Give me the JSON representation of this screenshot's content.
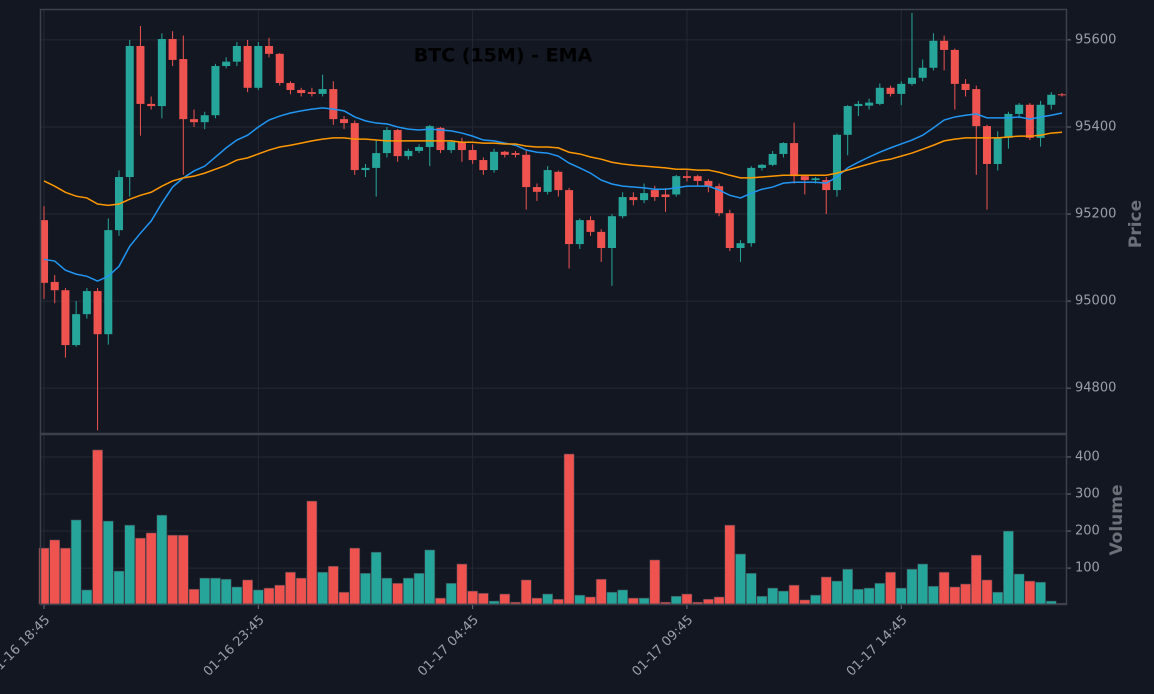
{
  "chart_data": {
    "type": "candlestick",
    "title": "BTC (15M) - EMA",
    "ylabel": "Price",
    "categories": [
      "01-16 18:45",
      null,
      null,
      null,
      null,
      null,
      null,
      null,
      null,
      null,
      null,
      null,
      null,
      null,
      null,
      null,
      null,
      null,
      null,
      null,
      "01-16 23:45",
      null,
      null,
      null,
      null,
      null,
      null,
      null,
      null,
      null,
      null,
      null,
      null,
      null,
      null,
      null,
      null,
      null,
      null,
      null,
      "01-17 04:45",
      null,
      null,
      null,
      null,
      null,
      null,
      null,
      null,
      null,
      null,
      null,
      null,
      null,
      null,
      null,
      null,
      null,
      null,
      null,
      "01-17 09:45",
      null,
      null,
      null,
      null,
      null,
      null,
      null,
      null,
      null,
      null,
      null,
      null,
      null,
      null,
      null,
      null,
      null,
      null,
      null,
      "01-17 14:45",
      null,
      null,
      null,
      null,
      null,
      null,
      null,
      null,
      null,
      null,
      null,
      null,
      null,
      null,
      null
    ],
    "open": [
      95186,
      95044,
      95025,
      94899,
      94970,
      95023,
      94924,
      95163,
      95285,
      95586,
      95453,
      95448,
      95602,
      95556,
      95418,
      95411,
      95427,
      95540,
      95550,
      95586,
      95490,
      95586,
      95568,
      95501,
      95485,
      95480,
      95476,
      95487,
      95418,
      95409,
      95301,
      95306,
      95340,
      95393,
      95333,
      95345,
      95354,
      95398,
      95347,
      95366,
      95347,
      95324,
      95301,
      95343,
      95340,
      95336,
      95262,
      95251,
      95297,
      95255,
      95131,
      95186,
      95159,
      95122,
      95195,
      95239,
      95232,
      95255,
      95245,
      95245,
      95287,
      95287,
      95276,
      95264,
      95202,
      95122,
      95133,
      95306,
      95313,
      95338,
      95363,
      95287,
      95278,
      95278,
      95255,
      95382,
      95448,
      95449,
      95453,
      95490,
      95476,
      95499,
      95513,
      95536,
      95598,
      95577,
      95499,
      95487,
      95402,
      95315,
      95375,
      95430,
      95451,
      95375,
      95451,
      95475
    ],
    "high": [
      95218,
      95060,
      95030,
      95000,
      95030,
      95030,
      95190,
      95300,
      95600,
      95632,
      95470,
      95615,
      95620,
      95610,
      95440,
      95435,
      95545,
      95560,
      95595,
      95600,
      95595,
      95605,
      95570,
      95505,
      95490,
      95490,
      95520,
      95505,
      95425,
      95415,
      95315,
      95370,
      95400,
      95395,
      95350,
      95360,
      95405,
      95400,
      95370,
      95375,
      95360,
      95330,
      95350,
      95345,
      95345,
      95345,
      95270,
      95310,
      95300,
      95260,
      95190,
      95195,
      95165,
      95200,
      95250,
      95250,
      95270,
      95265,
      95260,
      95290,
      95300,
      95290,
      95280,
      95270,
      95210,
      95140,
      95310,
      95315,
      95345,
      95365,
      95410,
      95290,
      95285,
      95285,
      95385,
      95450,
      95460,
      95465,
      95500,
      95495,
      95505,
      95662,
      95555,
      95615,
      95610,
      95580,
      95510,
      95495,
      95405,
      95390,
      95435,
      95455,
      95455,
      95460,
      95480,
      95478
    ],
    "low": [
      95005,
      94995,
      94870,
      94895,
      94960,
      94703,
      94900,
      95150,
      95240,
      95380,
      95440,
      95420,
      95540,
      95290,
      95400,
      95395,
      95420,
      95535,
      95540,
      95480,
      95485,
      95560,
      95495,
      95475,
      95470,
      95470,
      95470,
      95405,
      95395,
      95290,
      95285,
      95240,
      95330,
      95320,
      95325,
      95340,
      95310,
      95340,
      95340,
      95320,
      95315,
      95290,
      95295,
      95330,
      95330,
      95210,
      95230,
      95245,
      95240,
      95075,
      95120,
      95150,
      95090,
      95035,
      95190,
      95220,
      95225,
      95230,
      95205,
      95240,
      95275,
      95265,
      95250,
      95195,
      95115,
      95090,
      95125,
      95300,
      95310,
      95330,
      95270,
      95245,
      95270,
      95200,
      95240,
      95335,
      95425,
      95440,
      95450,
      95470,
      95450,
      95495,
      95505,
      95530,
      95530,
      95440,
      95470,
      95290,
      95210,
      95300,
      95350,
      95420,
      95370,
      95355,
      95440,
      95470
    ],
    "close": [
      95042,
      95025,
      94899,
      94970,
      95023,
      94924,
      95163,
      95285,
      95586,
      95453,
      95448,
      95602,
      95554,
      95418,
      95411,
      95427,
      95540,
      95550,
      95586,
      95490,
      95586,
      95568,
      95501,
      95485,
      95478,
      95476,
      95487,
      95418,
      95409,
      95301,
      95306,
      95340,
      95393,
      95333,
      95345,
      95354,
      95402,
      95347,
      95366,
      95347,
      95324,
      95301,
      95343,
      95336,
      95336,
      95262,
      95251,
      95301,
      95255,
      95131,
      95186,
      95159,
      95122,
      95195,
      95239,
      95232,
      95248,
      95239,
      95239,
      95287,
      95283,
      95276,
      95264,
      95202,
      95122,
      95133,
      95306,
      95313,
      95338,
      95363,
      95287,
      95278,
      95282,
      95255,
      95382,
      95448,
      95453,
      95456,
      95490,
      95476,
      95499,
      95513,
      95536,
      95598,
      95577,
      95499,
      95485,
      95402,
      95315,
      95375,
      95430,
      95451,
      95375,
      95451,
      95474,
      95473
    ],
    "up_color": "#26a69a",
    "down_color": "#ef5350",
    "series": [
      {
        "color": "#2196f3",
        "values": [
          95096,
          95092,
          95071,
          95062,
          95057,
          95046,
          95057,
          95080,
          95126,
          95156,
          95184,
          95225,
          95262,
          95283,
          95299,
          95310,
          95331,
          95352,
          95370,
          95381,
          95400,
          95416,
          95425,
          95432,
          95437,
          95441,
          95444,
          95441,
          95437,
          95423,
          95414,
          95409,
          95407,
          95400,
          95395,
          95393,
          95395,
          95393,
          95391,
          95386,
          95379,
          95370,
          95368,
          95363,
          95358,
          95347,
          95342,
          95340,
          95333,
          95317,
          95306,
          95294,
          95278,
          95269,
          95264,
          95262,
          95260,
          95257,
          95257,
          95260,
          95264,
          95264,
          95264,
          95255,
          95243,
          95237,
          95248,
          95257,
          95262,
          95271,
          95273,
          95273,
          95273,
          95271,
          95285,
          95306,
          95319,
          95331,
          95342,
          95352,
          95361,
          95370,
          95381,
          95398,
          95416,
          95423,
          95427,
          95430,
          95421,
          95421,
          95421,
          95423,
          95418,
          95423,
          95427,
          95432
        ]
      },
      {
        "color": "#ff9800",
        "values": [
          95276,
          95264,
          95250,
          95241,
          95237,
          95223,
          95220,
          95223,
          95234,
          95243,
          95250,
          95264,
          95276,
          95283,
          95287,
          95294,
          95303,
          95312,
          95324,
          95329,
          95338,
          95347,
          95354,
          95358,
          95363,
          95368,
          95372,
          95375,
          95375,
          95372,
          95372,
          95370,
          95368,
          95368,
          95368,
          95368,
          95368,
          95368,
          95368,
          95365,
          95365,
          95363,
          95363,
          95361,
          95361,
          95356,
          95354,
          95354,
          95352,
          95342,
          95338,
          95331,
          95326,
          95319,
          95315,
          95312,
          95310,
          95308,
          95306,
          95303,
          95303,
          95301,
          95301,
          95296,
          95289,
          95283,
          95283,
          95285,
          95287,
          95289,
          95289,
          95289,
          95289,
          95289,
          95294,
          95301,
          95308,
          95315,
          95322,
          95326,
          95333,
          95340,
          95349,
          95358,
          95368,
          95372,
          95375,
          95375,
          95375,
          95375,
          95377,
          95379,
          95379,
          95381,
          95386,
          95388
        ]
      }
    ],
    "ylim": [
      94697,
      95671
    ],
    "yticks": [
      94800,
      95000,
      95200,
      95400,
      95600
    ],
    "grid": true,
    "volume": {
      "label": "Volume",
      "values": [
        154,
        176,
        154,
        230,
        41,
        419,
        227,
        92,
        216,
        181,
        195,
        243,
        189,
        189,
        43,
        73,
        73,
        70,
        49,
        68,
        41,
        46,
        54,
        89,
        73,
        281,
        89,
        105,
        35,
        154,
        86,
        143,
        73,
        59,
        73,
        86,
        149,
        19,
        59,
        111,
        38,
        32,
        11,
        30,
        8,
        68,
        19,
        30,
        16,
        408,
        27,
        22,
        70,
        35,
        41,
        19,
        19,
        122,
        8,
        24,
        30,
        8,
        16,
        22,
        216,
        138,
        86,
        24,
        46,
        38,
        54,
        14,
        27,
        76,
        65,
        97,
        43,
        46,
        59,
        89,
        46,
        97,
        111,
        51,
        89,
        49,
        57,
        135,
        68,
        35,
        200,
        84,
        65,
        62,
        11,
        5
      ],
      "ylim": [
        3,
        462
      ],
      "yticks": [
        100,
        200,
        300,
        400
      ]
    }
  }
}
